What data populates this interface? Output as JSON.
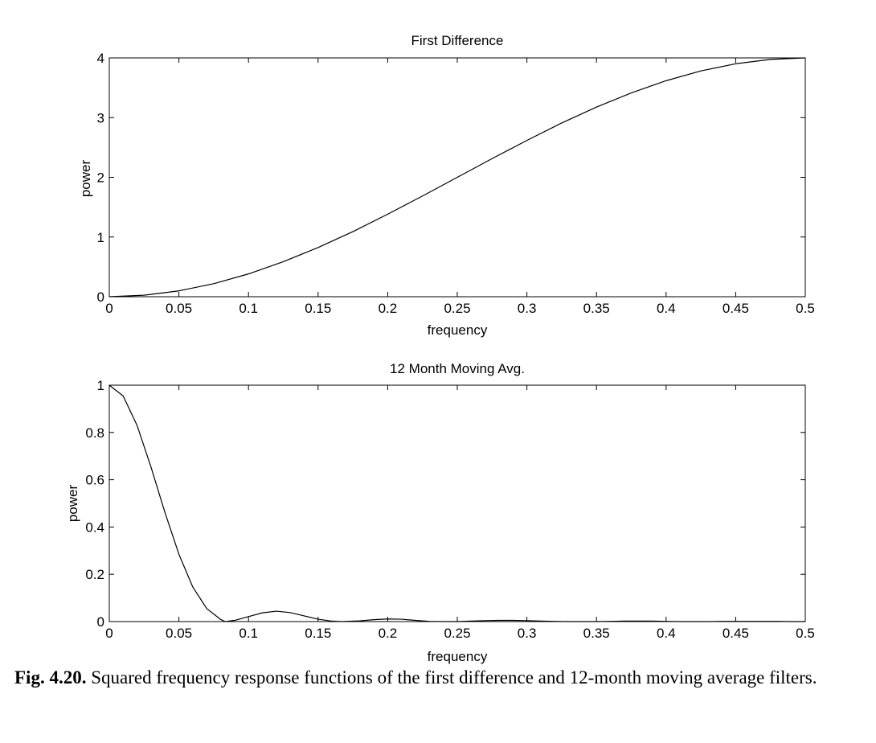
{
  "chart_data": [
    {
      "type": "line",
      "title": "First Difference",
      "xlabel": "frequency",
      "ylabel": "power",
      "xlim": [
        0,
        0.5
      ],
      "ylim": [
        0,
        4
      ],
      "xticks": [
        "0",
        "0.05",
        "0.1",
        "0.15",
        "0.2",
        "0.25",
        "0.3",
        "0.35",
        "0.4",
        "0.45",
        "0.5"
      ],
      "yticks": [
        "0",
        "1",
        "2",
        "3",
        "4"
      ],
      "grid": false,
      "series": [
        {
          "x": [
            0,
            0.025,
            0.05,
            0.075,
            0.1,
            0.125,
            0.15,
            0.175,
            0.2,
            0.225,
            0.25,
            0.275,
            0.3,
            0.325,
            0.35,
            0.375,
            0.4,
            0.425,
            0.45,
            0.475,
            0.5
          ],
          "y": [
            0,
            0.025,
            0.098,
            0.218,
            0.382,
            0.586,
            0.824,
            1.09,
            1.382,
            1.687,
            2.0,
            2.313,
            2.618,
            2.91,
            3.176,
            3.414,
            3.618,
            3.782,
            3.902,
            3.975,
            4.0
          ]
        }
      ]
    },
    {
      "type": "line",
      "title": "12 Month Moving Avg.",
      "xlabel": "frequency",
      "ylabel": "power",
      "xlim": [
        0,
        0.5
      ],
      "ylim": [
        0,
        1
      ],
      "xticks": [
        "0",
        "0.05",
        "0.1",
        "0.15",
        "0.2",
        "0.25",
        "0.3",
        "0.35",
        "0.4",
        "0.45",
        "0.5"
      ],
      "yticks": [
        "0",
        "0.2",
        "0.4",
        "0.6",
        "0.8",
        "1"
      ],
      "grid": false,
      "series": [
        {
          "x": [
            0,
            0.01,
            0.02,
            0.03,
            0.04,
            0.05,
            0.06,
            0.07,
            0.08,
            0.0833,
            0.09,
            0.1,
            0.11,
            0.12,
            0.13,
            0.14,
            0.15,
            0.16,
            0.1667,
            0.18,
            0.19,
            0.2,
            0.21,
            0.22,
            0.23,
            0.24,
            0.25,
            0.26,
            0.27,
            0.28,
            0.29,
            0.3,
            0.31,
            0.32,
            0.33,
            0.34,
            0.35,
            0.36,
            0.37,
            0.38,
            0.39,
            0.4,
            0.41,
            0.42,
            0.43,
            0.44,
            0.45,
            0.46,
            0.47,
            0.48,
            0.49,
            0.5
          ],
          "y": [
            1.0,
            0.954,
            0.829,
            0.653,
            0.461,
            0.285,
            0.146,
            0.055,
            0.009,
            0.0,
            0.005,
            0.021,
            0.037,
            0.044,
            0.038,
            0.024,
            0.01,
            0.002,
            0.0,
            0.003,
            0.008,
            0.011,
            0.01,
            0.005,
            0.001,
            0.0,
            0.0,
            0.002,
            0.004,
            0.005,
            0.005,
            0.004,
            0.002,
            0.001,
            0.0,
            0.0,
            0.0,
            0.001,
            0.002,
            0.002,
            0.002,
            0.001,
            0.0,
            0.0,
            0.0,
            0.001,
            0.001,
            0.001,
            0.001,
            0.001,
            0.0,
            0.0
          ]
        }
      ]
    }
  ],
  "caption": {
    "label": "Fig. 4.20.",
    "text": "Squared frequency response functions of the first difference and 12-month moving average filters."
  }
}
